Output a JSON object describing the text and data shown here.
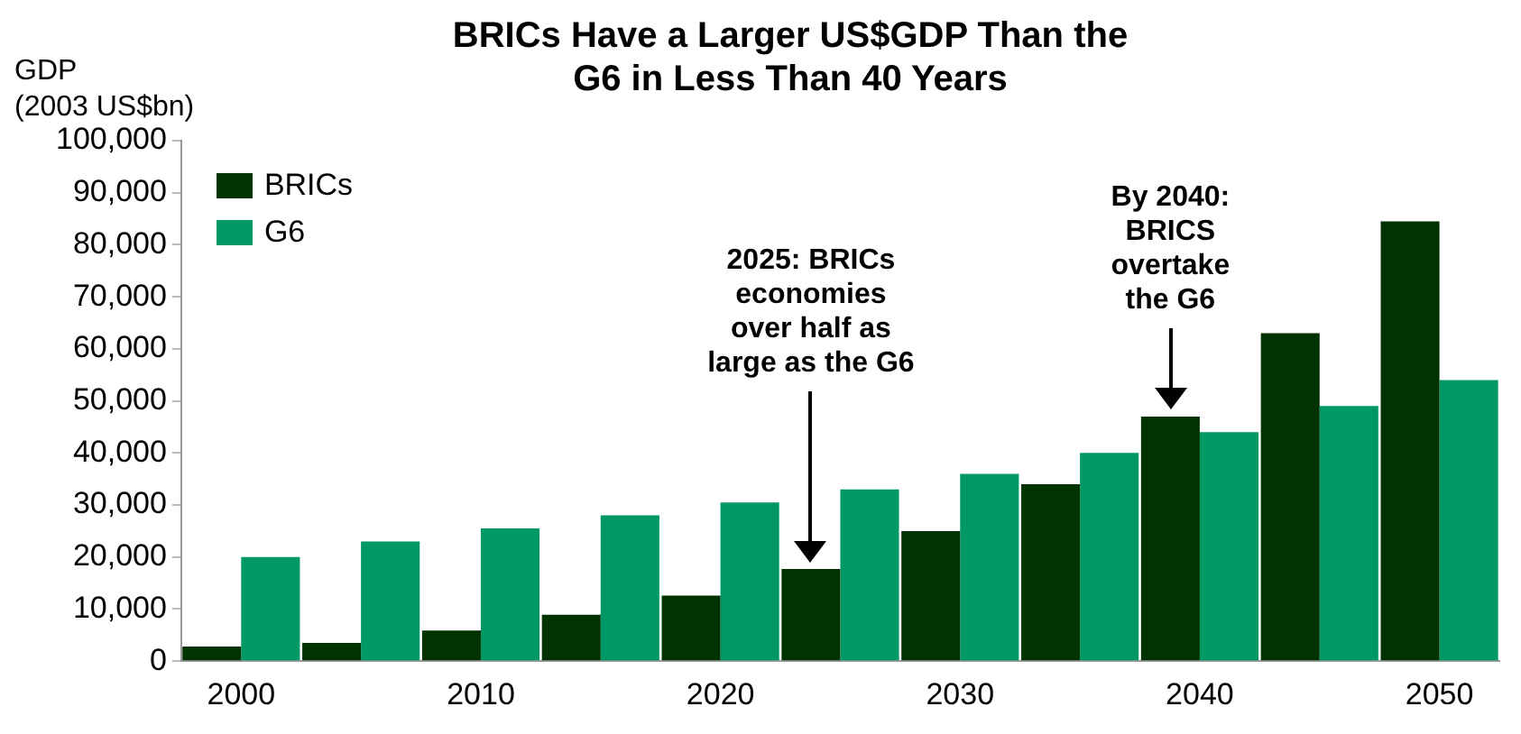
{
  "chart_data": {
    "type": "bar",
    "title": "BRICs Have a Larger US$GDP Than the G6 in Less Than 40 Years",
    "ylabel": "GDP\n(2003 US$bn)",
    "categories": [
      "2000",
      null,
      "2010",
      null,
      "2020",
      null,
      "2030",
      null,
      "2040",
      null,
      "2050"
    ],
    "series": [
      {
        "name": "BRICs",
        "color": "#003300",
        "values": [
          2800,
          3500,
          5900,
          8900,
          12600,
          17700,
          25000,
          34000,
          47000,
          63000,
          84500
        ]
      },
      {
        "name": "G6",
        "color": "#009966",
        "values": [
          20000,
          23000,
          25500,
          28000,
          30500,
          33000,
          36000,
          40000,
          44000,
          49000,
          54000
        ]
      }
    ],
    "ylim": [
      0,
      100000
    ],
    "yticks": [
      0,
      {
        "value": 10000,
        "label": "10,000"
      },
      {
        "value": 20000,
        "label": "20,000"
      },
      {
        "value": 30000,
        "label": "30,000"
      },
      {
        "value": 40000,
        "label": "40,000"
      },
      {
        "value": 50000,
        "label": "50,000"
      },
      {
        "value": 60000,
        "label": "60,000"
      },
      {
        "value": 70000,
        "label": "70,000"
      },
      {
        "value": 80000,
        "label": "80,000"
      },
      {
        "value": 90000,
        "label": "90,000"
      },
      {
        "value": 100000,
        "label": "100,000"
      }
    ],
    "legend": "top left",
    "grid": false,
    "annotations": [
      "2025: BRICs\neconomies\nover half as\nlarge as the G6",
      "By 2040:\nBRICS\novertake\nthe G6"
    ]
  }
}
